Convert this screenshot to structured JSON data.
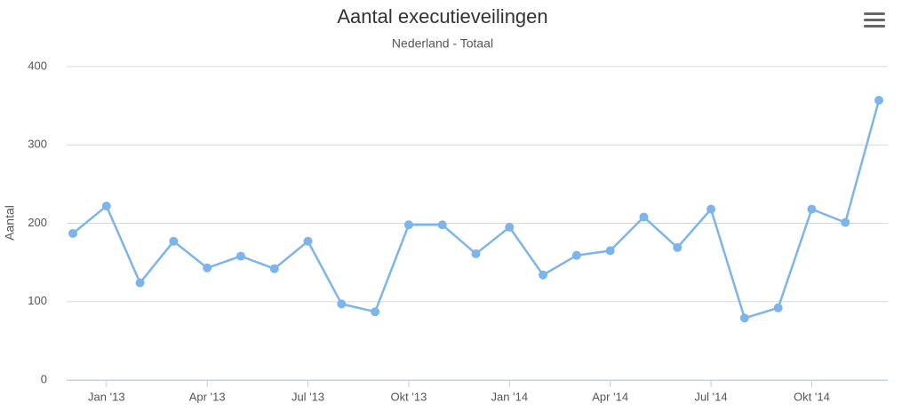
{
  "chart_data": {
    "type": "line",
    "title": "Aantal executieveilingen",
    "subtitle": "Nederland - Totaal",
    "y_label": "Aantal",
    "categories": [
      null,
      "Jan '13",
      null,
      null,
      "Apr '13",
      null,
      null,
      "Jul '13",
      null,
      null,
      "Okt '13",
      null,
      null,
      "Jan '14",
      null,
      null,
      "Apr '14",
      null,
      null,
      "Jul '14",
      null,
      null,
      "Okt '14",
      null,
      null
    ],
    "values": [
      187,
      222,
      124,
      177,
      143,
      158,
      142,
      177,
      97,
      87,
      198,
      198,
      161,
      195,
      134,
      159,
      165,
      208,
      169,
      218,
      79,
      92,
      218,
      201,
      357
    ],
    "color": "#7cb5ec",
    "ylim": [
      0,
      400
    ],
    "yticks": [
      0,
      100,
      200,
      300,
      400
    ],
    "grid": true
  }
}
